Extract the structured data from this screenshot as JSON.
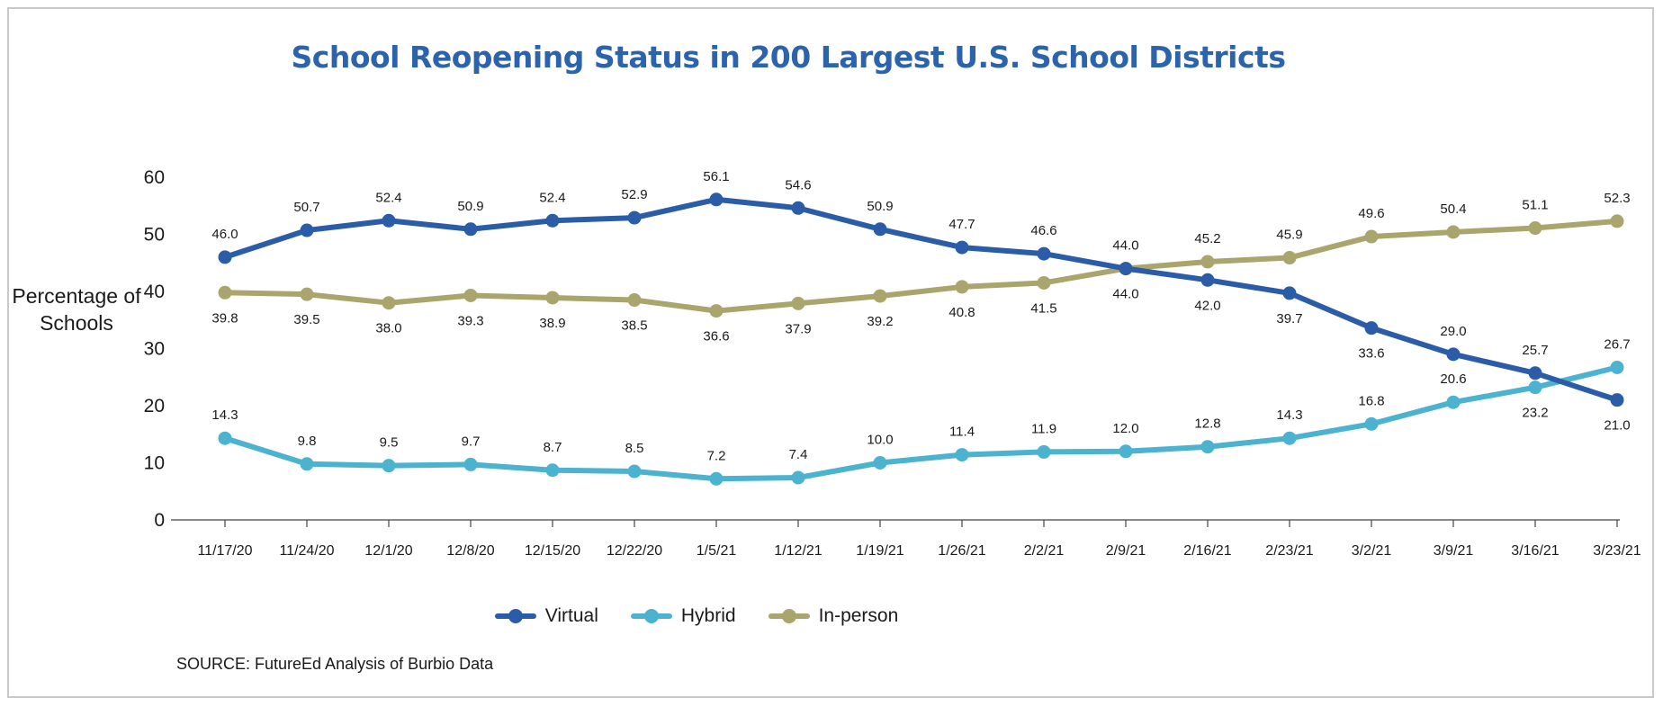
{
  "chart_data": {
    "type": "line",
    "title": "School Reopening Status in 200 Largest U.S. School Districts",
    "ylabel": "Percentage of Schools",
    "xlabel": "",
    "ylim": [
      0,
      60
    ],
    "yticks": [
      "0",
      "10",
      "20",
      "30",
      "40",
      "50",
      "60"
    ],
    "categories": [
      "11/17/20",
      "11/24/20",
      "12/1/20",
      "12/8/20",
      "12/15/20",
      "12/22/20",
      "1/5/21",
      "1/12/21",
      "1/19/21",
      "1/26/21",
      "2/2/21",
      "2/9/21",
      "2/16/21",
      "2/23/21",
      "3/2/21",
      "3/9/21",
      "3/16/21",
      "3/23/21"
    ],
    "series": [
      {
        "name": "Virtual",
        "color": "#2a5ca8",
        "values": [
          46.0,
          50.7,
          52.4,
          50.9,
          52.4,
          52.9,
          56.1,
          54.6,
          50.9,
          47.7,
          46.6,
          44.0,
          42.0,
          39.7,
          33.6,
          29.0,
          25.7,
          21.0
        ],
        "labels": [
          "46.0",
          "50.7",
          "52.4",
          "50.9",
          "52.4",
          "52.9",
          "56.1",
          "54.6",
          "50.9",
          "47.7",
          "46.6",
          "44.0",
          "42.0",
          "39.7",
          "33.6",
          "29.0",
          "25.7",
          "21.0"
        ],
        "label_pos": [
          "above",
          "above",
          "above",
          "above",
          "above",
          "above",
          "above",
          "above",
          "above",
          "above",
          "above",
          "above",
          "below",
          "below",
          "below",
          "above",
          "above",
          "below"
        ]
      },
      {
        "name": "Hybrid",
        "color": "#4bb3cf",
        "values": [
          14.3,
          9.8,
          9.5,
          9.7,
          8.7,
          8.5,
          7.2,
          7.4,
          10.0,
          11.4,
          11.9,
          12.0,
          12.8,
          14.3,
          16.8,
          20.6,
          23.2,
          26.7
        ],
        "labels": [
          "14.3",
          "9.8",
          "9.5",
          "9.7",
          "8.7",
          "8.5",
          "7.2",
          "7.4",
          "10.0",
          "11.4",
          "11.9",
          "12.0",
          "12.8",
          "14.3",
          "16.8",
          "20.6",
          "23.2",
          "26.7"
        ],
        "label_pos": [
          "above",
          "above",
          "above",
          "above",
          "above",
          "above",
          "above",
          "above",
          "above",
          "above",
          "above",
          "above",
          "above",
          "above",
          "above",
          "above",
          "below",
          "above"
        ]
      },
      {
        "name": "In-person",
        "color": "#a9a56d",
        "values": [
          39.8,
          39.5,
          38.0,
          39.3,
          38.9,
          38.5,
          36.6,
          37.9,
          39.2,
          40.8,
          41.5,
          44.0,
          45.2,
          45.9,
          49.6,
          50.4,
          51.1,
          52.3
        ],
        "labels": [
          "39.8",
          "39.5",
          "38.0",
          "39.3",
          "38.9",
          "38.5",
          "36.6",
          "37.9",
          "39.2",
          "40.8",
          "41.5",
          "44.0",
          "45.2",
          "45.9",
          "49.6",
          "50.4",
          "51.1",
          "52.3"
        ],
        "label_pos": [
          "below",
          "below",
          "below",
          "below",
          "below",
          "below",
          "below",
          "below",
          "below",
          "below",
          "below",
          "below",
          "above",
          "above",
          "above",
          "above",
          "above",
          "above"
        ]
      }
    ],
    "legend": {
      "position": "bottom-center"
    },
    "grid": false,
    "source": "SOURCE: FutureEd Analysis of Burbio Data"
  }
}
